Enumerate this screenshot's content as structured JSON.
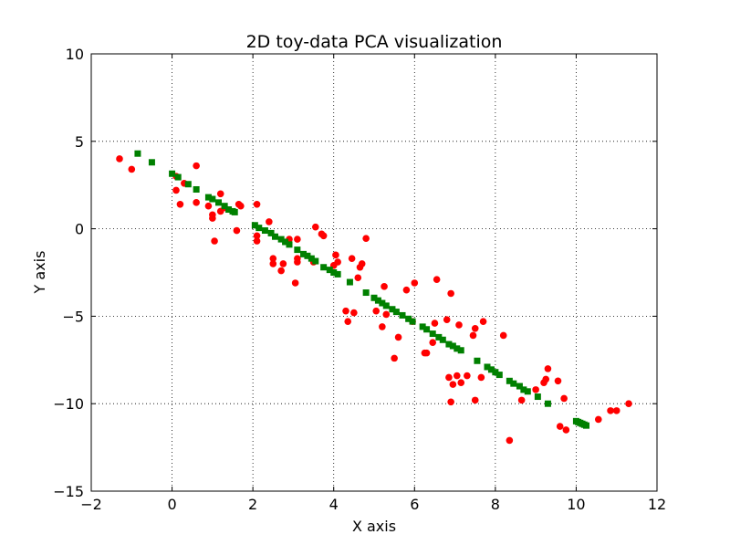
{
  "chart_data": {
    "type": "scatter",
    "title": "2D toy-data PCA visualization",
    "xlabel": "X axis",
    "ylabel": "Y axis",
    "xlim": [
      -2,
      12
    ],
    "ylim": [
      -15,
      10
    ],
    "xticks": [
      -2,
      0,
      2,
      4,
      6,
      8,
      10,
      12
    ],
    "yticks": [
      -15,
      -10,
      -5,
      0,
      5,
      10
    ],
    "xtick_labels": [
      "−2",
      "0",
      "2",
      "4",
      "6",
      "8",
      "10",
      "12"
    ],
    "ytick_labels": [
      "−15",
      "−10",
      "−5",
      "0",
      "5",
      "10"
    ],
    "grid": true,
    "series": [
      {
        "marker": "circle",
        "color": "#ff0000",
        "points": [
          [
            -1.3,
            4.0
          ],
          [
            -1.0,
            3.4
          ],
          [
            0.1,
            3.0
          ],
          [
            0.1,
            2.2
          ],
          [
            0.2,
            1.4
          ],
          [
            0.3,
            2.6
          ],
          [
            0.6,
            3.6
          ],
          [
            0.6,
            1.5
          ],
          [
            0.9,
            1.3
          ],
          [
            1.0,
            0.8
          ],
          [
            1.0,
            0.6
          ],
          [
            1.05,
            -0.7
          ],
          [
            1.2,
            2.0
          ],
          [
            1.2,
            1.0
          ],
          [
            1.3,
            1.2
          ],
          [
            1.6,
            -0.1
          ],
          [
            1.65,
            1.4
          ],
          [
            1.7,
            1.3
          ],
          [
            2.1,
            1.4
          ],
          [
            2.1,
            -0.7
          ],
          [
            2.1,
            -0.4
          ],
          [
            2.4,
            0.4
          ],
          [
            2.5,
            -1.7
          ],
          [
            2.5,
            -2.0
          ],
          [
            2.7,
            -2.4
          ],
          [
            2.75,
            -2.0
          ],
          [
            2.9,
            -0.6
          ],
          [
            3.05,
            -3.1
          ],
          [
            3.1,
            -0.6
          ],
          [
            3.1,
            -1.7
          ],
          [
            3.1,
            -1.9
          ],
          [
            3.5,
            -1.9
          ],
          [
            3.55,
            0.1
          ],
          [
            3.7,
            -0.3
          ],
          [
            3.75,
            -0.4
          ],
          [
            4.0,
            -2.1
          ],
          [
            4.05,
            -1.5
          ],
          [
            4.1,
            -1.9
          ],
          [
            4.3,
            -4.7
          ],
          [
            4.35,
            -5.3
          ],
          [
            4.45,
            -1.7
          ],
          [
            4.5,
            -4.8
          ],
          [
            4.6,
            -2.8
          ],
          [
            4.65,
            -2.2
          ],
          [
            4.7,
            -2.0
          ],
          [
            4.8,
            -0.55
          ],
          [
            5.05,
            -4.7
          ],
          [
            5.2,
            -5.6
          ],
          [
            5.25,
            -3.3
          ],
          [
            5.3,
            -4.9
          ],
          [
            5.5,
            -7.4
          ],
          [
            5.6,
            -6.2
          ],
          [
            5.8,
            -3.5
          ],
          [
            5.95,
            -5.3
          ],
          [
            6.0,
            -3.1
          ],
          [
            6.25,
            -7.1
          ],
          [
            6.3,
            -7.1
          ],
          [
            6.45,
            -6.5
          ],
          [
            6.5,
            -5.4
          ],
          [
            6.55,
            -2.9
          ],
          [
            6.8,
            -5.2
          ],
          [
            6.85,
            -8.5
          ],
          [
            6.9,
            -3.7
          ],
          [
            6.9,
            -9.9
          ],
          [
            6.95,
            -8.9
          ],
          [
            7.05,
            -8.4
          ],
          [
            7.1,
            -5.5
          ],
          [
            7.15,
            -8.8
          ],
          [
            7.3,
            -8.4
          ],
          [
            7.45,
            -6.1
          ],
          [
            7.5,
            -5.7
          ],
          [
            7.5,
            -9.8
          ],
          [
            7.65,
            -8.5
          ],
          [
            7.7,
            -5.3
          ],
          [
            8.2,
            -6.1
          ],
          [
            8.35,
            -12.1
          ],
          [
            8.65,
            -9.8
          ],
          [
            9.0,
            -9.2
          ],
          [
            9.2,
            -8.8
          ],
          [
            9.25,
            -8.6
          ],
          [
            9.3,
            -8.0
          ],
          [
            9.55,
            -8.7
          ],
          [
            9.6,
            -11.3
          ],
          [
            9.7,
            -9.7
          ],
          [
            9.75,
            -11.5
          ],
          [
            10.55,
            -10.9
          ],
          [
            10.85,
            -10.4
          ],
          [
            11.0,
            -10.4
          ],
          [
            11.3,
            -10.0
          ]
        ]
      },
      {
        "marker": "square",
        "color": "#008000",
        "points": [
          [
            -0.85,
            4.3
          ],
          [
            -0.5,
            3.8
          ],
          [
            0.0,
            3.15
          ],
          [
            0.15,
            2.95
          ],
          [
            0.4,
            2.55
          ],
          [
            0.6,
            2.25
          ],
          [
            0.9,
            1.8
          ],
          [
            1.0,
            1.7
          ],
          [
            1.15,
            1.5
          ],
          [
            1.3,
            1.3
          ],
          [
            1.4,
            1.1
          ],
          [
            1.5,
            1.0
          ],
          [
            1.55,
            0.95
          ],
          [
            2.05,
            0.2
          ],
          [
            2.15,
            0.05
          ],
          [
            2.3,
            -0.1
          ],
          [
            2.45,
            -0.25
          ],
          [
            2.55,
            -0.45
          ],
          [
            2.7,
            -0.6
          ],
          [
            2.8,
            -0.75
          ],
          [
            2.9,
            -0.9
          ],
          [
            3.1,
            -1.2
          ],
          [
            3.25,
            -1.45
          ],
          [
            3.35,
            -1.55
          ],
          [
            3.45,
            -1.7
          ],
          [
            3.55,
            -1.85
          ],
          [
            3.75,
            -2.2
          ],
          [
            3.9,
            -2.35
          ],
          [
            4.0,
            -2.5
          ],
          [
            4.1,
            -2.6
          ],
          [
            4.4,
            -3.05
          ],
          [
            4.8,
            -3.65
          ],
          [
            5.0,
            -3.95
          ],
          [
            5.1,
            -4.1
          ],
          [
            5.2,
            -4.25
          ],
          [
            5.3,
            -4.4
          ],
          [
            5.45,
            -4.6
          ],
          [
            5.55,
            -4.75
          ],
          [
            5.7,
            -4.95
          ],
          [
            5.85,
            -5.15
          ],
          [
            5.95,
            -5.3
          ],
          [
            6.2,
            -5.6
          ],
          [
            6.3,
            -5.75
          ],
          [
            6.45,
            -6.0
          ],
          [
            6.6,
            -6.2
          ],
          [
            6.7,
            -6.35
          ],
          [
            6.85,
            -6.6
          ],
          [
            6.95,
            -6.7
          ],
          [
            7.05,
            -6.85
          ],
          [
            7.15,
            -6.95
          ],
          [
            7.55,
            -7.55
          ],
          [
            7.8,
            -7.9
          ],
          [
            7.9,
            -8.05
          ],
          [
            8.0,
            -8.2
          ],
          [
            8.1,
            -8.35
          ],
          [
            8.35,
            -8.7
          ],
          [
            8.45,
            -8.85
          ],
          [
            8.6,
            -9.0
          ],
          [
            8.7,
            -9.2
          ],
          [
            8.8,
            -9.3
          ],
          [
            9.05,
            -9.6
          ],
          [
            9.3,
            -10.0
          ],
          [
            10.0,
            -11.0
          ],
          [
            10.05,
            -11.05
          ],
          [
            10.1,
            -11.1
          ],
          [
            10.15,
            -11.15
          ],
          [
            10.2,
            -11.2
          ],
          [
            10.25,
            -11.25
          ]
        ]
      }
    ]
  }
}
